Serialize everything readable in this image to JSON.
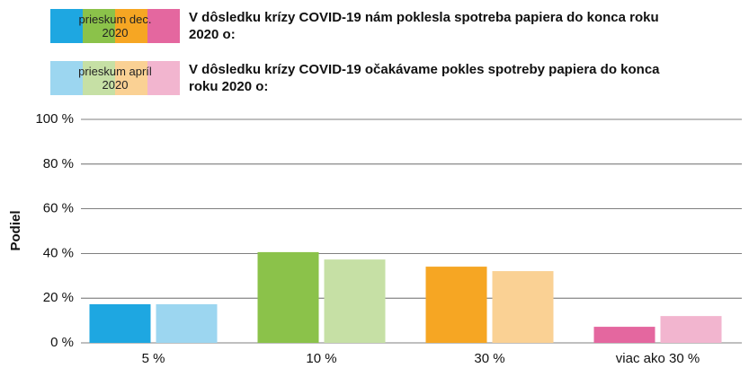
{
  "chart_data": {
    "type": "bar",
    "categories": [
      "5 %",
      "10 %",
      "30 %",
      "viac ako 30 %"
    ],
    "series": [
      {
        "name": "prieskum dec. 2020",
        "description": "V dôsledku krízy COVID-19 nám poklesla spotreba papiera do konca roku 2020 o:",
        "colors": [
          "#1ea7e1",
          "#8bc24a",
          "#f6a623",
          "#e4679f"
        ],
        "values": [
          17.3,
          40.6,
          34.1,
          7.2
        ]
      },
      {
        "name": "prieskum apríl 2020",
        "description": "V dôsledku krízy COVID-19 očakávame pokles spotreby papiera do konca roku 2020 o:",
        "colors": [
          "#9cd6f0",
          "#c6e0a5",
          "#fad194",
          "#f2b5cf"
        ],
        "values": [
          17.3,
          37.3,
          32.1,
          12.0
        ]
      }
    ],
    "ylabel": "Podiel",
    "ylim": [
      0,
      100
    ],
    "yticks": [
      {
        "value": 0,
        "label": "0 %"
      },
      {
        "value": 20,
        "label": "20 %"
      },
      {
        "value": 40,
        "label": "40 %"
      },
      {
        "value": 60,
        "label": "60 %"
      },
      {
        "value": 80,
        "label": "80 %"
      },
      {
        "value": 100,
        "label": "100 %"
      }
    ],
    "grid": true
  }
}
